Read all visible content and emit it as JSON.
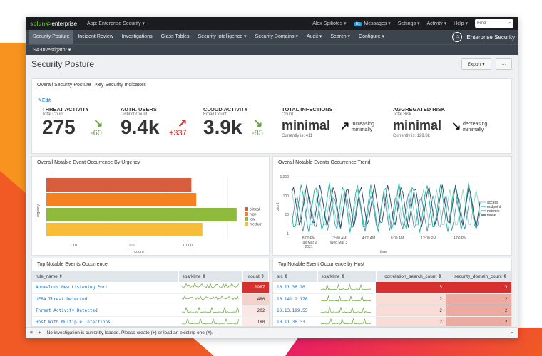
{
  "topbar": {
    "logo_prefix": "splunk>",
    "logo_suffix": "enterprise",
    "app": "App: Enterprise Security ▾",
    "user": "Alex Spiliotes ▾",
    "messages_count": "61",
    "messages": "Messages ▾",
    "settings": "Settings ▾",
    "activity": "Activity ▾",
    "help": "Help ▾",
    "find_placeholder": "Find"
  },
  "nav": {
    "items": [
      "Security Posture",
      "Incident Review",
      "Investigations",
      "Glass Tables",
      "Security Intelligence ▾",
      "Security Domains ▾",
      "Audit ▾",
      "Search ▾",
      "Configure ▾"
    ],
    "brand": "Enterprise Security",
    "sub": "SA-Investigator ▾"
  },
  "page": {
    "title": "Security Posture",
    "export": "Export ▾",
    "more": "..."
  },
  "kpis": {
    "panel_title": "Overall Security Posture : Key Security Indicators",
    "edit": "✎Edit",
    "items": [
      {
        "title": "THREAT ACTIVITY",
        "sub": "Total Count",
        "value": "275",
        "delta": "-60"
      },
      {
        "title": "AUTH. USERS",
        "sub": "Distinct Count",
        "value": "9.4k",
        "delta": "+337"
      },
      {
        "title": "CLOUD ACTIVITY",
        "sub": "Email Count",
        "value": "3.9k",
        "delta": "-85"
      },
      {
        "title": "TOTAL INFECTIONS",
        "sub": "Count",
        "value": "minimal",
        "trend": "increasing minimally",
        "note": "Currently is: 411"
      },
      {
        "title": "AGGREGATED RISK",
        "sub": "Total Risk",
        "value": "minimal",
        "trend": "decreasing minimally",
        "note": "Currently is: 129.8k"
      }
    ],
    "colors": {
      "green": "#65a637",
      "red": "#d6312f"
    }
  },
  "urgency_chart": {
    "title": "Overall Notable Event Occurrence By Urgency",
    "ylabel": "urgency",
    "xlabel": "count",
    "ticks": [
      "10",
      "100",
      "1,000"
    ],
    "legend": [
      "critical",
      "high",
      "low",
      "medium"
    ]
  },
  "trend_chart": {
    "title": "Overall Notable Events Occurrence Trend",
    "ylabel": "count",
    "xlabel": "time",
    "yticks": [
      "1,000",
      "100",
      "10",
      "1"
    ],
    "xticks": [
      "8:00 PM\nTue Mar 2\n2021",
      "12:00 AM\nWed Mar 3",
      "4:00 AM",
      "8:00 AM",
      "12:00 PM",
      "4:00 PM"
    ],
    "legend": [
      "access",
      "endpoint",
      "network",
      "threat"
    ]
  },
  "chart_data": [
    {
      "type": "bar",
      "title": "Overall Notable Event Occurrence By Urgency",
      "xlabel": "count",
      "ylabel": "urgency",
      "orientation": "horizontal",
      "scale": "log",
      "categories": [
        "critical",
        "high",
        "low",
        "medium"
      ],
      "values": [
        250,
        300,
        1400,
        380
      ],
      "colors": [
        "#d85d3c",
        "#f58220",
        "#8fbb3c",
        "#f7bc38"
      ],
      "xlim": [
        1,
        2000
      ]
    },
    {
      "type": "line",
      "title": "Overall Notable Events Occurrence Trend",
      "xlabel": "time",
      "ylabel": "count",
      "scale": "log",
      "ylim": [
        1,
        1000
      ],
      "series": [
        {
          "name": "access",
          "color": "#9dd3c8"
        },
        {
          "name": "endpoint",
          "color": "#1ab6a0"
        },
        {
          "name": "network",
          "color": "#5a8fb6"
        },
        {
          "name": "threat",
          "color": "#2b4561"
        }
      ]
    }
  ],
  "top_events": {
    "title": "Top Notable Events Occurrence",
    "headers": [
      "rule_name ⇕",
      "sparkline ⇕",
      "count ⇕"
    ],
    "rows": [
      {
        "name": "Anomalous New Listening Port",
        "count": "1987"
      },
      {
        "name": "UEBA Threat Detected",
        "count": "480"
      },
      {
        "name": "Threat Activity Detected",
        "count": "202"
      },
      {
        "name": "Host With Multiple Infections",
        "count": "180"
      }
    ]
  },
  "top_hosts": {
    "title": "Top Notable Event Occurrence by Host",
    "headers": [
      "src ⇕",
      "sparkline ⇕",
      "correlation_search_count ⇕",
      "security_domain_count ⇕"
    ],
    "rows": [
      {
        "src": "10.11.36.20",
        "csc": "5",
        "sdc": "3"
      },
      {
        "src": "10.141.2.178",
        "csc": "2",
        "sdc": "2"
      },
      {
        "src": "10.13.199.55",
        "csc": "2",
        "sdc": "2"
      },
      {
        "src": "10.11.36.33",
        "csc": "2",
        "sdc": "2"
      }
    ]
  },
  "status": {
    "text": "No investigation is currently loaded. Please create (+) or load an existing one (≡)."
  }
}
